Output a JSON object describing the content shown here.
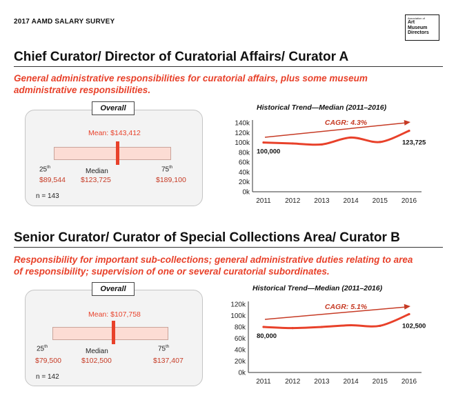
{
  "header": {
    "survey_title": "2017 AAMD SALARY SURVEY",
    "logo": {
      "line1": "Association of",
      "line2": "Art",
      "line3": "Museum",
      "line4": "Directors"
    }
  },
  "sections": [
    {
      "title": "Chief Curator/ Director of Curatorial Affairs/ Curator A",
      "description_line1": "General administrative responsibilities for curatorial affairs, plus some museum",
      "description_line2": "administrative responsibilities.",
      "overall": {
        "tab_label": "Overall",
        "mean_label": "Mean: $143,412",
        "p25_base": "25",
        "p25_sup": "th",
        "p25_value": "$89,544",
        "median_label": "Median",
        "median_value": "$123,725",
        "p75_base": "75",
        "p75_sup": "th",
        "p75_value": "$189,100",
        "n_label": "n = 143"
      }
    },
    {
      "title": "Senior Curator/ Curator of Special Collections Area/ Curator B",
      "description_line1": "Responsibility for important sub-collections; general administrative duties relating to area",
      "description_line2": "of responsibility; supervision of one or several curatorial subordinates.",
      "overall": {
        "tab_label": "Overall",
        "mean_label": "Mean: $107,758",
        "p25_base": "25",
        "p25_sup": "th",
        "p25_value": "$79,500",
        "median_label": "Median",
        "median_value": "$102,500",
        "p75_base": "75",
        "p75_sup": "th",
        "p75_value": "$137,407",
        "n_label": "n = 142"
      }
    }
  ],
  "chart_data": [
    {
      "type": "line",
      "title": "Historical Trend—Median (2011–2016)",
      "x": [
        "2011",
        "2012",
        "2013",
        "2014",
        "2015",
        "2016"
      ],
      "y_ticks": [
        "0k",
        "20k",
        "40k",
        "60k",
        "80k",
        "100k",
        "120k",
        "140k"
      ],
      "ylim": [
        0,
        140000
      ],
      "values": [
        100000,
        98000,
        96000,
        110000,
        101000,
        123725
      ],
      "start_label": "100,000",
      "end_label": "123,725",
      "cagr_label": "CAGR: 4.3%",
      "line_color": "#e8412a",
      "grid": false
    },
    {
      "type": "line",
      "title": "Historical Trend—Median (2011–2016)",
      "x": [
        "2011",
        "2012",
        "2013",
        "2014",
        "2015",
        "2016"
      ],
      "y_ticks": [
        "0k",
        "20k",
        "40k",
        "60k",
        "80k",
        "100k",
        "120k"
      ],
      "ylim": [
        0,
        120000
      ],
      "values": [
        80000,
        78000,
        80000,
        83000,
        82000,
        102500
      ],
      "start_label": "80,000",
      "end_label": "102,500",
      "cagr_label": "CAGR: 5.1%",
      "line_color": "#e8412a",
      "grid": false
    }
  ]
}
